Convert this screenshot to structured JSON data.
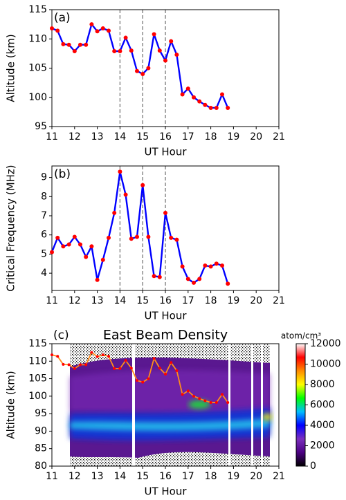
{
  "chart_data": [
    {
      "type": "line",
      "label": "(a)",
      "xlabel": "UT Hour",
      "ylabel": "Altitude (km)",
      "x": [
        11,
        11.25,
        11.5,
        11.75,
        12,
        12.25,
        12.5,
        12.75,
        13,
        13.25,
        13.5,
        13.75,
        14,
        14.25,
        14.5,
        14.75,
        15,
        15.25,
        15.5,
        15.75,
        16,
        16.25,
        16.5,
        16.75,
        17,
        17.25,
        17.5,
        17.75,
        18,
        18.25,
        18.5,
        18.75
      ],
      "series": [
        {
          "color": "#0000ff",
          "marker_color": "#ff0000",
          "values": [
            111.8,
            111.4,
            109.1,
            109.0,
            107.9,
            109.0,
            109.0,
            112.5,
            111.3,
            111.8,
            111.4,
            107.9,
            107.9,
            110.2,
            108.0,
            104.5,
            104.0,
            105.0,
            110.8,
            108.0,
            106.3,
            109.6,
            107.3,
            100.5,
            101.5,
            100.0,
            99.3,
            98.7,
            98.2,
            98.2,
            100.5,
            98.2
          ]
        }
      ],
      "xlim": [
        11,
        21
      ],
      "xticks": [
        11,
        12,
        13,
        14,
        15,
        16,
        17,
        18,
        19,
        20,
        21
      ],
      "ylim": [
        95,
        115
      ],
      "yticks": [
        95,
        100,
        105,
        110,
        115
      ],
      "vlines": [
        14,
        15,
        16
      ]
    },
    {
      "type": "line",
      "label": "(b)",
      "xlabel": "UT Hour",
      "ylabel": "Critical Frequency (MHz)",
      "x": [
        11,
        11.25,
        11.5,
        11.75,
        12,
        12.25,
        12.5,
        12.75,
        13,
        13.25,
        13.5,
        13.75,
        14,
        14.25,
        14.5,
        14.75,
        15,
        15.25,
        15.5,
        15.75,
        16,
        16.25,
        16.5,
        16.75,
        17,
        17.25,
        17.5,
        17.75,
        18,
        18.25,
        18.5,
        18.75
      ],
      "series": [
        {
          "color": "#0000ff",
          "marker_color": "#ff0000",
          "values": [
            5.1,
            5.85,
            5.4,
            5.5,
            5.9,
            5.5,
            4.85,
            5.4,
            3.65,
            4.7,
            5.85,
            7.15,
            9.3,
            8.1,
            5.8,
            5.9,
            8.6,
            5.9,
            3.85,
            3.8,
            7.15,
            5.85,
            5.75,
            4.35,
            3.7,
            3.5,
            3.7,
            4.4,
            4.35,
            4.5,
            4.4,
            3.45
          ]
        }
      ],
      "xlim": [
        11,
        21
      ],
      "xticks": [
        11,
        12,
        13,
        14,
        15,
        16,
        17,
        18,
        19,
        20,
        21
      ],
      "ylim": [
        3.1,
        9.6
      ],
      "yticks": [
        4,
        5,
        6,
        7,
        8,
        9
      ],
      "vlines": [
        14,
        15,
        16
      ]
    },
    {
      "type": "heatmap",
      "label": "(c)",
      "title": "East Beam Density",
      "xlabel": "UT Hour",
      "ylabel": "Altitude (km)",
      "x": [
        11,
        11.25,
        11.5,
        11.75,
        12,
        12.25,
        12.5,
        12.75,
        13,
        13.25,
        13.5,
        13.75,
        14,
        14.25,
        14.5,
        14.75,
        15,
        15.25,
        15.5,
        15.75,
        16,
        16.25,
        16.5,
        16.75,
        17,
        17.25,
        17.5,
        17.75,
        18,
        18.25,
        18.5,
        18.75
      ],
      "series": [
        {
          "color": "#ff8c1a",
          "marker_color": "#ff0000",
          "values": [
            111.8,
            111.4,
            109.1,
            109.0,
            107.9,
            109.0,
            109.0,
            112.5,
            111.3,
            111.8,
            111.4,
            107.9,
            107.9,
            110.2,
            108.0,
            104.5,
            104.0,
            105.0,
            110.8,
            108.0,
            106.3,
            109.6,
            107.3,
            100.5,
            101.5,
            100.0,
            99.3,
            98.7,
            98.2,
            98.2,
            100.5,
            98.2
          ]
        }
      ],
      "xlim": [
        11,
        21
      ],
      "xticks": [
        11,
        12,
        13,
        14,
        15,
        16,
        17,
        18,
        19,
        20,
        21
      ],
      "ylim": [
        80,
        115
      ],
      "yticks": [
        80,
        85,
        90,
        95,
        100,
        105,
        110,
        115
      ],
      "colorbar": {
        "label": "atom/cm³",
        "lim": [
          0,
          12000
        ],
        "ticks": [
          0,
          2000,
          4000,
          6000,
          8000,
          10000,
          12000
        ],
        "colors": [
          "#000000",
          "#4b0082",
          "#7b2fbe",
          "#0000ff",
          "#00bfff",
          "#00ff00",
          "#ffff00",
          "#ff8c00",
          "#ff0000",
          "#ffffff"
        ]
      }
    }
  ]
}
